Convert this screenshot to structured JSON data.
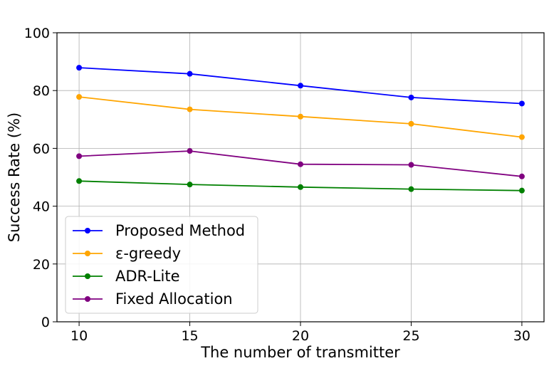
{
  "chart_data": {
    "type": "line",
    "title": "",
    "xlabel": "The number of transmitter",
    "ylabel": "Success Rate (%)",
    "x": [
      10,
      15,
      20,
      25,
      30
    ],
    "xticks": [
      "10",
      "15",
      "20",
      "25",
      "30"
    ],
    "yticks": [
      "0",
      "20",
      "40",
      "60",
      "80",
      "100"
    ],
    "xlim": [
      9,
      31
    ],
    "ylim": [
      0,
      100
    ],
    "grid": true,
    "legend_position": "lower-left",
    "series": [
      {
        "name": "Proposed Method",
        "color": "#0000ff",
        "values": [
          87.9,
          85.8,
          81.7,
          77.6,
          75.5
        ]
      },
      {
        "name": "ε-greedy",
        "color": "#ffa500",
        "values": [
          77.8,
          73.5,
          71.0,
          68.5,
          63.9
        ]
      },
      {
        "name": "ADR-Lite",
        "color": "#008000",
        "values": [
          48.7,
          47.5,
          46.6,
          45.9,
          45.4
        ]
      },
      {
        "name": "Fixed Allocation",
        "color": "#800080",
        "values": [
          57.3,
          59.1,
          54.5,
          54.3,
          50.3
        ]
      }
    ]
  }
}
